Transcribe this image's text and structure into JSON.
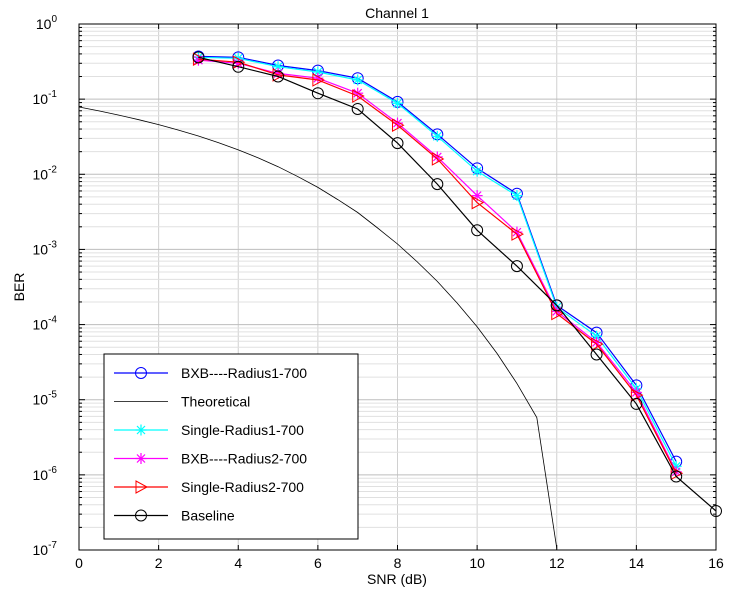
{
  "chart_data": {
    "type": "line",
    "title": "Channel 1",
    "xlabel": "SNR (dB)",
    "ylabel": "BER",
    "xlim": [
      0,
      16
    ],
    "ylim": [
      1e-07,
      1
    ],
    "yscale": "log",
    "grid": true,
    "minor_grid": true,
    "legend_position": "bottom-left",
    "x_ticks": [
      0,
      2,
      4,
      6,
      8,
      10,
      12,
      14,
      16
    ],
    "y_ticks": [
      {
        "value": 1e-07,
        "base": "10",
        "exp": "-7"
      },
      {
        "value": 1e-06,
        "base": "10",
        "exp": "-6"
      },
      {
        "value": 1e-05,
        "base": "10",
        "exp": "-5"
      },
      {
        "value": 0.0001,
        "base": "10",
        "exp": "-4"
      },
      {
        "value": 0.001,
        "base": "10",
        "exp": "-3"
      },
      {
        "value": 0.01,
        "base": "10",
        "exp": "-2"
      },
      {
        "value": 0.1,
        "base": "10",
        "exp": "-1"
      },
      {
        "value": 1,
        "base": "10",
        "exp": "0"
      }
    ],
    "series": [
      {
        "name": "BXB----Radius1-700",
        "color": "#0000ff",
        "marker": "circle",
        "x": [
          3,
          4,
          5,
          6,
          7,
          8,
          9,
          10,
          11,
          12,
          13,
          14,
          15
        ],
        "y": [
          0.37,
          0.36,
          0.28,
          0.24,
          0.19,
          0.092,
          0.034,
          0.012,
          0.0055,
          0.00018,
          7.8e-05,
          1.55e-05,
          1.5e-06
        ]
      },
      {
        "name": "Theoretical",
        "color": "#000000",
        "marker": "none",
        "x": [
          0,
          0.5,
          1,
          1.5,
          2,
          2.5,
          3,
          3.5,
          4,
          4.5,
          5,
          5.5,
          6,
          6.5,
          7,
          7.5,
          8,
          8.5,
          9,
          9.5,
          10,
          10.5,
          11,
          11.5,
          12
        ],
        "y": [
          0.0786,
          0.0697,
          0.0613,
          0.0532,
          0.0458,
          0.0387,
          0.0323,
          0.0264,
          0.0211,
          0.0165,
          0.0126,
          0.0093,
          0.0067,
          0.0046,
          0.0031,
          0.00193,
          0.00118,
          0.00068,
          0.000376,
          0.000193,
          9.35e-05,
          4.13e-05,
          1.65e-05,
          5.8e-06,
          1.05e-07
        ]
      },
      {
        "name": "Single-Radius1-700",
        "color": "#00ffff",
        "marker": "asterisk",
        "x": [
          3,
          4,
          5,
          6,
          7,
          8,
          9,
          10,
          11,
          12,
          13,
          14,
          15
        ],
        "y": [
          0.36,
          0.35,
          0.27,
          0.23,
          0.18,
          0.088,
          0.032,
          0.011,
          0.0052,
          0.00017,
          7e-05,
          1.4e-05,
          1.3e-06
        ]
      },
      {
        "name": "BXB----Radius2-700",
        "color": "#ff00ff",
        "marker": "asterisk",
        "x": [
          3,
          4,
          5,
          6,
          7,
          8,
          9,
          10,
          11,
          12,
          13,
          14,
          15
        ],
        "y": [
          0.33,
          0.3,
          0.22,
          0.19,
          0.12,
          0.048,
          0.017,
          0.0052,
          0.0017,
          0.00015,
          5.8e-05,
          1.25e-05,
          1.1e-06
        ]
      },
      {
        "name": "Single-Radius2-700",
        "color": "#ff0000",
        "marker": "triangle-right",
        "x": [
          3,
          4,
          5,
          6,
          7,
          8,
          9,
          10,
          11,
          12,
          13,
          14,
          15
        ],
        "y": [
          0.34,
          0.31,
          0.21,
          0.18,
          0.11,
          0.045,
          0.016,
          0.0042,
          0.0016,
          0.00014,
          5.5e-05,
          1.15e-05,
          1.05e-06
        ]
      },
      {
        "name": "Baseline",
        "color": "#000000",
        "marker": "circle",
        "x": [
          3,
          4,
          5,
          6,
          7,
          8,
          9,
          10,
          11,
          12,
          13,
          14,
          15,
          16
        ],
        "y": [
          0.36,
          0.27,
          0.2,
          0.12,
          0.074,
          0.026,
          0.0074,
          0.0018,
          0.0006,
          0.00018,
          4e-05,
          8.8e-06,
          9.5e-07,
          3.3e-07
        ]
      }
    ]
  }
}
